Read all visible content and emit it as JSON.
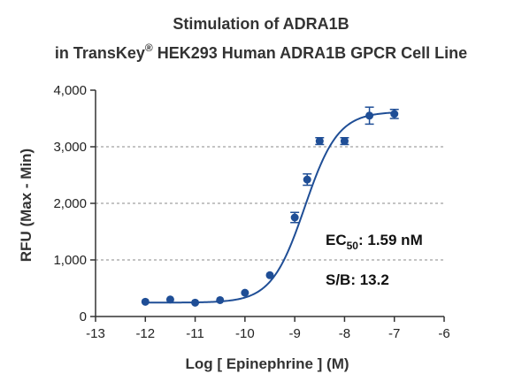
{
  "chart_data": {
    "type": "scatter",
    "title_line1": "Stimulation of  ADRA1B",
    "title_line2_prefix": "in TransKey",
    "title_line2_sup": "®",
    "title_line2_suffix": " HEK293 Human ADRA1B GPCR Cell Line",
    "xlabel": "Log [ Epinephrine ]  (M)",
    "ylabel": "RFU (Max - Min)",
    "xlim": [
      -13,
      -6
    ],
    "ylim": [
      0,
      4000
    ],
    "x_ticks": [
      -13,
      -12,
      -11,
      -10,
      -9,
      -8,
      -7,
      -6
    ],
    "x_tick_labels": [
      "-13",
      "-12",
      "-11",
      "-10",
      "-9",
      "-8",
      "-7",
      "-6"
    ],
    "y_ticks": [
      0,
      1000,
      2000,
      3000,
      4000
    ],
    "y_tick_labels": [
      "0",
      "1,000",
      "2,000",
      "3,000",
      "4,000"
    ],
    "grid": "horizontal dashed at 1,000 / 2,000 / 3,000",
    "color": "#1f4e96",
    "series": [
      {
        "x": [
          -12,
          -11.5,
          -11,
          -10.5,
          -10,
          -9.5,
          -9,
          -8.75,
          -8.5,
          -8,
          -7.5,
          -7
        ],
        "y": [
          260,
          300,
          245,
          290,
          420,
          730,
          1750,
          2420,
          3100,
          3100,
          3550,
          3580
        ],
        "error": [
          0,
          0,
          0,
          0,
          0,
          0,
          90,
          100,
          60,
          60,
          150,
          80
        ]
      }
    ],
    "fit": {
      "model": "4PL",
      "bottom": 245,
      "top": 3620,
      "log_ec50": -8.8,
      "hill": 1.3
    },
    "annotations": {
      "ec50_prefix": "EC",
      "ec50_sub": "50",
      "ec50_value": ": 1.59 nM",
      "sb": "S/B: 13.2"
    }
  }
}
